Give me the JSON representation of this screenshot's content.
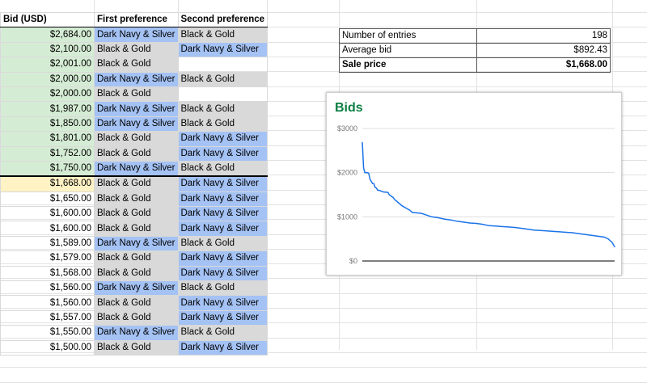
{
  "columns": [
    "Bid (USD)",
    "First preference",
    "Second preference"
  ],
  "colors": {
    "blue": "#a4c2f4",
    "grey": "#d9d9d9",
    "green": "#d5ecd4",
    "yellow": "#fff2c4",
    "chart_title": "#0b8043",
    "line": "#1a73e8"
  },
  "rows": [
    {
      "bid": "$2,684.00",
      "first": "Dark Navy & Silver",
      "second": "Black & Gold"
    },
    {
      "bid": "$2,100.00",
      "first": "Black & Gold",
      "second": "Dark Navy & Silver"
    },
    {
      "bid": "$2,001.00",
      "first": "Black & Gold",
      "second": ""
    },
    {
      "bid": "$2,000.00",
      "first": "Dark Navy & Silver",
      "second": "Black & Gold"
    },
    {
      "bid": "$2,000.00",
      "first": "Black & Gold",
      "second": ""
    },
    {
      "bid": "$1,987.00",
      "first": "Dark Navy & Silver",
      "second": "Black & Gold"
    },
    {
      "bid": "$1,850.00",
      "first": "Dark Navy & Silver",
      "second": "Black & Gold"
    },
    {
      "bid": "$1,801.00",
      "first": "Black & Gold",
      "second": "Dark Navy & Silver"
    },
    {
      "bid": "$1,752.00",
      "first": "Black & Gold",
      "second": "Dark Navy & Silver"
    },
    {
      "bid": "$1,750.00",
      "first": "Dark Navy & Silver",
      "second": "Black & Gold"
    },
    {
      "bid": "$1,668.00",
      "first": "Black & Gold",
      "second": "Dark Navy & Silver"
    },
    {
      "bid": "$1,650.00",
      "first": "Black & Gold",
      "second": "Dark Navy & Silver"
    },
    {
      "bid": "$1,600.00",
      "first": "Black & Gold",
      "second": "Dark Navy & Silver"
    },
    {
      "bid": "$1,600.00",
      "first": "Black & Gold",
      "second": "Dark Navy & Silver"
    },
    {
      "bid": "$1,589.00",
      "first": "Dark Navy & Silver",
      "second": "Black & Gold"
    },
    {
      "bid": "$1,579.00",
      "first": "Black & Gold",
      "second": "Dark Navy & Silver"
    },
    {
      "bid": "$1,568.00",
      "first": "Black & Gold",
      "second": "Dark Navy & Silver"
    },
    {
      "bid": "$1,560.00",
      "first": "Dark Navy & Silver",
      "second": "Black & Gold"
    },
    {
      "bid": "$1,560.00",
      "first": "Black & Gold",
      "second": "Dark Navy & Silver"
    },
    {
      "bid": "$1,557.00",
      "first": "Black & Gold",
      "second": "Dark Navy & Silver"
    },
    {
      "bid": "$1,550.00",
      "first": "Dark Navy & Silver",
      "second": "Black & Gold"
    },
    {
      "bid": "$1,500.00",
      "first": "Black & Gold",
      "second": "Dark Navy & Silver"
    }
  ],
  "winning_rows": 10,
  "sale_row": 10,
  "summary": [
    {
      "label": "Number of entries",
      "value": "198",
      "bold": false
    },
    {
      "label": "Average bid",
      "value": "$892.43",
      "bold": false
    },
    {
      "label": "Sale price",
      "value": "$1,668.00",
      "bold": true
    }
  ],
  "chart_data": {
    "type": "line",
    "title": "Bids",
    "ylim": [
      0,
      3000
    ],
    "yticks": [
      "$3000",
      "$2000",
      "$1000",
      "$0"
    ],
    "ytick_values": [
      3000,
      2000,
      1000,
      0
    ],
    "grid": true,
    "x": [
      1,
      2,
      3,
      4,
      5,
      6,
      7,
      8,
      9,
      10,
      11,
      12,
      13,
      14,
      15,
      16,
      17,
      18,
      19,
      20,
      21,
      22,
      23,
      24,
      25,
      26,
      27,
      28,
      29,
      30,
      32,
      35,
      38,
      40,
      43,
      47,
      50,
      55,
      60,
      65,
      70,
      75,
      80,
      85,
      90,
      95,
      100,
      105,
      110,
      115,
      120,
      125,
      130,
      135,
      140,
      145,
      150,
      155,
      160,
      165,
      170,
      175,
      180,
      185,
      190,
      193,
      196,
      198
    ],
    "values": [
      2684,
      2100,
      2001,
      2000,
      2000,
      1987,
      1850,
      1801,
      1752,
      1750,
      1668,
      1650,
      1600,
      1600,
      1589,
      1579,
      1568,
      1560,
      1560,
      1557,
      1550,
      1500,
      1480,
      1460,
      1440,
      1400,
      1370,
      1350,
      1320,
      1300,
      1250,
      1200,
      1150,
      1100,
      1090,
      1080,
      1050,
      1000,
      980,
      950,
      930,
      900,
      880,
      860,
      850,
      830,
      800,
      790,
      780,
      770,
      760,
      740,
      720,
      700,
      690,
      680,
      670,
      660,
      650,
      640,
      620,
      600,
      580,
      560,
      540,
      500,
      420,
      320
    ]
  }
}
